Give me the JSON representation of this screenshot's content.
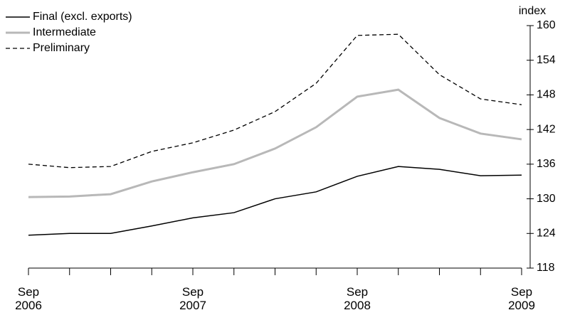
{
  "chart_data": {
    "type": "line",
    "y_axis_label": "index",
    "categories": [
      "Sep 2006",
      null,
      null,
      null,
      "Sep 2007",
      null,
      null,
      null,
      "Sep 2008",
      null,
      null,
      null,
      "Sep 2009"
    ],
    "series": [
      {
        "name": "Final (excl. exports)",
        "color": "#000000",
        "dash": false,
        "values": [
          123.7,
          124.0,
          124.0,
          125.3,
          126.7,
          127.6,
          130.0,
          131.2,
          133.9,
          135.6,
          135.1,
          134.0,
          134.1
        ]
      },
      {
        "name": "Intermediate",
        "color": "#b8b8b8",
        "dash": false,
        "values": [
          130.3,
          130.4,
          130.8,
          133.0,
          134.6,
          136.0,
          138.7,
          142.4,
          147.7,
          148.9,
          144.0,
          141.3,
          140.3
        ]
      },
      {
        "name": "Preliminary",
        "color": "#000000",
        "dash": true,
        "values": [
          136.0,
          135.4,
          135.6,
          138.2,
          139.7,
          141.9,
          145.1,
          150.0,
          158.3,
          158.5,
          151.5,
          147.3,
          146.3
        ]
      }
    ],
    "ylim": [
      118,
      160
    ],
    "yticks": [
      118,
      124,
      130,
      136,
      142,
      148,
      154,
      160
    ],
    "grid": false,
    "legend": "upper left"
  }
}
